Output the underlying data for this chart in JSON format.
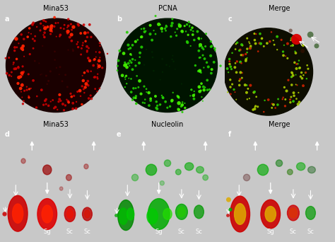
{
  "title_row1": [
    "Mina53",
    "PCNA",
    "Merge"
  ],
  "title_row2": [
    "Mina53",
    "Nucleolin",
    "Merge"
  ],
  "labels_row1": [
    "a",
    "b",
    "c"
  ],
  "labels_row2": [
    "d",
    "e",
    "f"
  ],
  "bg_color": "#1a1a1a",
  "panel_bg": "#000000",
  "text_color_title": "#000000",
  "text_color_panel": "#ffffff",
  "bottom_labels": [
    "Sg",
    "Sc",
    "Sc"
  ],
  "fig_width": 4.74,
  "fig_height": 3.42,
  "dpi": 100,
  "title_fontsize": 7,
  "label_fontsize": 6,
  "panel_label_fontsize": 7
}
